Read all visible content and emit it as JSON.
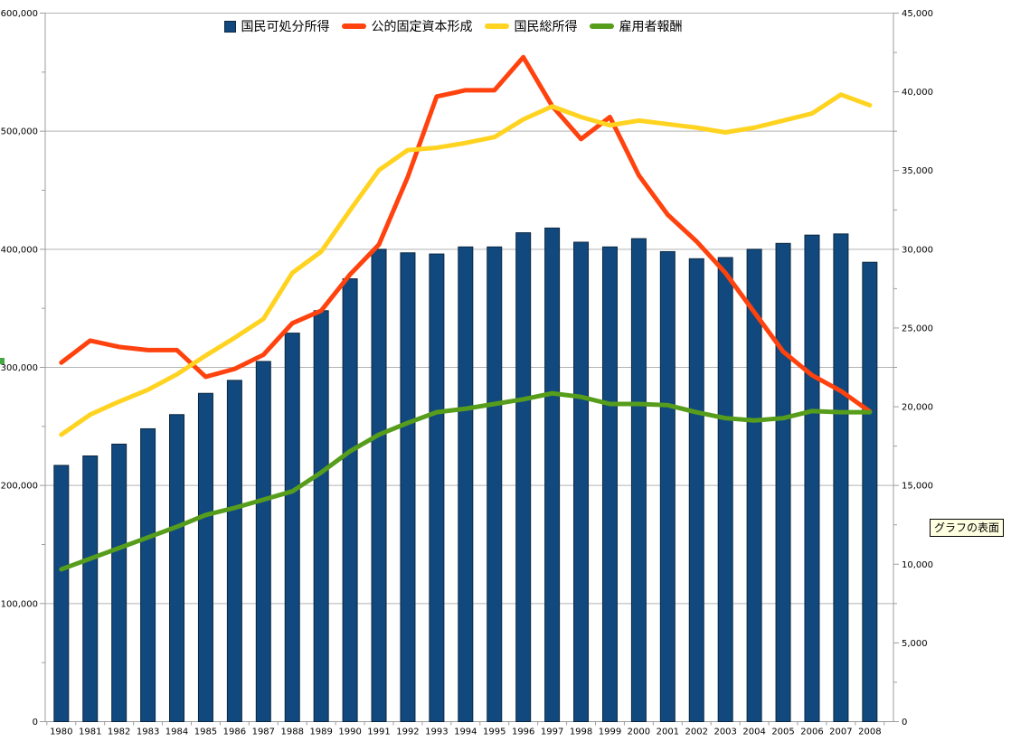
{
  "tooltip": {
    "text": "グラフの表面"
  },
  "chart_data": {
    "type": "bar",
    "subtype": "combo bar+line, dual axis",
    "title": "",
    "xlabel": "",
    "ylabel": "",
    "legend_position": "top-center",
    "grid": "horizontal major gridlines",
    "categories": [
      "1980",
      "1981",
      "1982",
      "1983",
      "1984",
      "1985",
      "1986",
      "1987",
      "1988",
      "1989",
      "1990",
      "1991",
      "1992",
      "1993",
      "1994",
      "1995",
      "1996",
      "1997",
      "1998",
      "1999",
      "2000",
      "2001",
      "2002",
      "2003",
      "2004",
      "2005",
      "2006",
      "2007",
      "2008"
    ],
    "series": [
      {
        "name": "国民可処分所得",
        "type": "bar",
        "axis": "left",
        "color": "#11497e",
        "values": [
          217000,
          225000,
          235000,
          248000,
          260000,
          278000,
          289000,
          305000,
          329000,
          348000,
          375000,
          400000,
          397000,
          396000,
          402000,
          402000,
          414000,
          418000,
          406000,
          402000,
          409000,
          398000,
          392000,
          393000,
          400000,
          405000,
          412000,
          413000,
          389000
        ]
      },
      {
        "name": "公的固定資本形成",
        "type": "line",
        "axis": "right",
        "color": "#FF420E",
        "values": [
          22800,
          24200,
          23800,
          23600,
          23600,
          21900,
          22400,
          23300,
          25300,
          26100,
          28400,
          30300,
          34600,
          39700,
          40100,
          40100,
          42200,
          39100,
          37000,
          38400,
          34700,
          32200,
          30500,
          28500,
          26000,
          23500,
          22000,
          21000,
          19700
        ]
      },
      {
        "name": "国民総所得",
        "type": "line",
        "axis": "left",
        "color": "#FFD320",
        "values": [
          243000,
          260000,
          271000,
          281000,
          294000,
          310000,
          325000,
          341000,
          380000,
          398000,
          433000,
          467000,
          484000,
          486000,
          490000,
          495000,
          510000,
          521000,
          512000,
          505000,
          509000,
          506000,
          503000,
          499000,
          503000,
          509000,
          515000,
          531000,
          522000
        ]
      },
      {
        "name": "雇用者報酬",
        "type": "line",
        "axis": "left",
        "color": "#579D1C",
        "values": [
          129000,
          138000,
          147000,
          156000,
          165000,
          175000,
          181000,
          188000,
          195000,
          211000,
          229000,
          243000,
          253000,
          262000,
          265000,
          269000,
          273000,
          278000,
          275000,
          269000,
          269000,
          268000,
          262000,
          257000,
          255000,
          257000,
          263000,
          262000,
          262000
        ]
      }
    ],
    "left_axis": {
      "min": 0,
      "max": 600000,
      "major_tick": 100000,
      "minor_tick": 50000,
      "tick_labels": [
        "0",
        "100,000",
        "200,000",
        "300,000",
        "400,000",
        "500,000",
        "600,000"
      ]
    },
    "right_axis": {
      "min": 0,
      "max": 45000,
      "major_tick": 5000,
      "minor_tick": 2500,
      "tick_labels": [
        "0",
        "5,000",
        "10,000",
        "15,000",
        "20,000",
        "25,000",
        "30,000",
        "35,000",
        "40,000",
        "45,000"
      ]
    },
    "colors": {
      "grid": "#b3b3b3",
      "axis": "#9d9d9d",
      "bar_border": "#0b2740",
      "background": "#ffffff",
      "tooltip_bg": "#ffffe1",
      "selection_handle": "#44a944"
    }
  }
}
